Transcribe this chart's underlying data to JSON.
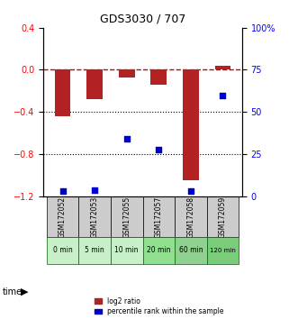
{
  "title": "GDS3030 / 707",
  "samples": [
    "GSM172052",
    "GSM172053",
    "GSM172055",
    "GSM172057",
    "GSM172058",
    "GSM172059"
  ],
  "times": [
    "0 min",
    "5 min",
    "10 min",
    "20 min",
    "60 min",
    "120 min"
  ],
  "log2_ratio": [
    -0.44,
    -0.28,
    -0.07,
    -0.14,
    -1.05,
    0.04
  ],
  "percentile_rank": [
    3,
    4,
    34,
    28,
    3,
    60
  ],
  "ylim_left": [
    -1.2,
    0.4
  ],
  "ylim_right": [
    0,
    100
  ],
  "bar_color": "#b22222",
  "dot_color": "#0000cc",
  "dashed_line_color": "#cc0000",
  "grid_color": "#000000",
  "sample_box_color": "#cccccc",
  "time_box_colors": [
    "#c8f0c8",
    "#c8f0c8",
    "#c8f0c8",
    "#90e090",
    "#90d090",
    "#7acc7a"
  ],
  "time_box_border": "#006600",
  "legend_bar_label": "log2 ratio",
  "legend_dot_label": "percentile rank within the sample",
  "yticks_left": [
    0.4,
    0,
    -0.4,
    -0.8,
    -1.2
  ],
  "yticks_right": [
    100,
    75,
    50,
    25,
    0
  ]
}
